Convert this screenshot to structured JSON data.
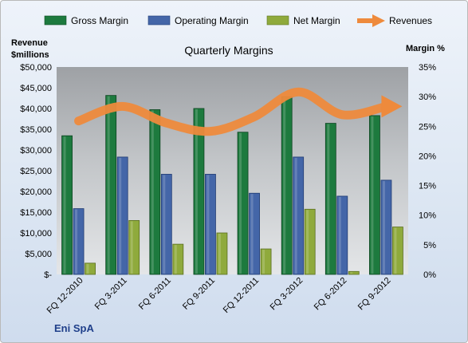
{
  "chart_data": {
    "type": "bar",
    "title": "Quarterly Margins",
    "company": "Eni SpA",
    "ylabel_left": [
      "Revenue",
      "$millions"
    ],
    "ylabel_right": "Margin %",
    "categories": [
      "FQ 12-2010",
      "FQ 3-2011",
      "FQ 6-2011",
      "FQ 9-2011",
      "FQ 12-2011",
      "FQ 3-2012",
      "FQ 6-2012",
      "FQ 9-2012"
    ],
    "left_axis": {
      "min": 0,
      "max": 50000,
      "step": 5000,
      "tick_labels": [
        "$-",
        "$5,000",
        "$10,000",
        "$15,000",
        "$20,000",
        "$25,000",
        "$30,000",
        "$35,000",
        "$40,000",
        "$45,000",
        "$50,000"
      ]
    },
    "right_axis": {
      "min": 0,
      "max": 35,
      "step": 5,
      "tick_labels": [
        "0%",
        "5%",
        "10%",
        "15%",
        "20%",
        "25%",
        "30%",
        "35%"
      ]
    },
    "series": [
      {
        "name": "Gross Margin",
        "axis": "right",
        "kind": "bar",
        "color": "#1d7a3e",
        "values": [
          23.4,
          30.2,
          27.8,
          28.0,
          24.0,
          30.0,
          25.5,
          26.8
        ]
      },
      {
        "name": "Operating Margin",
        "axis": "right",
        "kind": "bar",
        "color": "#4466a8",
        "values": [
          11.1,
          19.8,
          16.9,
          16.9,
          13.7,
          19.8,
          13.2,
          15.9
        ]
      },
      {
        "name": "Net Margin",
        "axis": "right",
        "kind": "bar",
        "color": "#8faa3c",
        "values": [
          1.9,
          9.1,
          5.1,
          7.0,
          4.3,
          11.0,
          0.5,
          8.0
        ]
      },
      {
        "name": "Revenues",
        "axis": "left",
        "kind": "line",
        "color": "#ee8a3c",
        "values": [
          37000,
          40500,
          36500,
          34500,
          38000,
          44000,
          38500,
          40500
        ]
      }
    ],
    "legend_position": "top",
    "grid": false
  }
}
